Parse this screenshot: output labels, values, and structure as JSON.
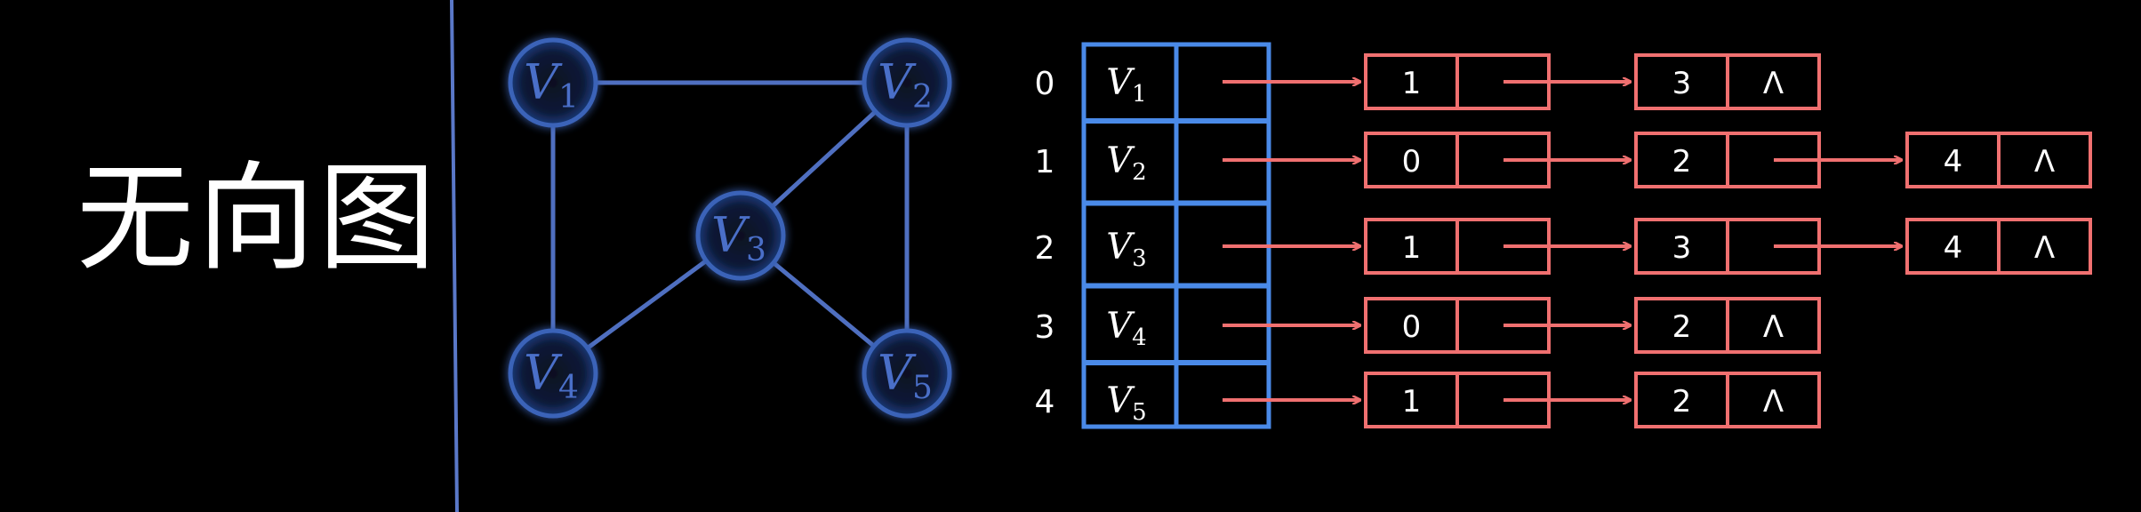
{
  "title": "无向图",
  "colors": {
    "background": "#000000",
    "graph_node": "#3b63b8",
    "graph_edge": "#4f6fc0",
    "array_box": "#4a8ae8",
    "list_box": "#f07070",
    "divider": "#5a78c8"
  },
  "graph": {
    "vertices": [
      {
        "id": "v1",
        "letter": "V",
        "sub": "1"
      },
      {
        "id": "v2",
        "letter": "V",
        "sub": "2"
      },
      {
        "id": "v3",
        "letter": "V",
        "sub": "3"
      },
      {
        "id": "v4",
        "letter": "V",
        "sub": "4"
      },
      {
        "id": "v5",
        "letter": "V",
        "sub": "5"
      }
    ],
    "edges": [
      [
        "v1",
        "v2"
      ],
      [
        "v1",
        "v4"
      ],
      [
        "v2",
        "v3"
      ],
      [
        "v2",
        "v5"
      ],
      [
        "v3",
        "v4"
      ],
      [
        "v3",
        "v5"
      ]
    ]
  },
  "adjacency": {
    "rows": [
      {
        "index": "0",
        "letter": "V",
        "sub": "1",
        "nodes": [
          {
            "value": "1",
            "next": ""
          },
          {
            "value": "3",
            "next": "Λ"
          }
        ]
      },
      {
        "index": "1",
        "letter": "V",
        "sub": "2",
        "nodes": [
          {
            "value": "0",
            "next": ""
          },
          {
            "value": "2",
            "next": ""
          },
          {
            "value": "4",
            "next": "Λ"
          }
        ]
      },
      {
        "index": "2",
        "letter": "V",
        "sub": "3",
        "nodes": [
          {
            "value": "1",
            "next": ""
          },
          {
            "value": "3",
            "next": ""
          },
          {
            "value": "4",
            "next": "Λ"
          }
        ]
      },
      {
        "index": "3",
        "letter": "V",
        "sub": "4",
        "nodes": [
          {
            "value": "0",
            "next": ""
          },
          {
            "value": "2",
            "next": "Λ"
          }
        ]
      },
      {
        "index": "4",
        "letter": "V",
        "sub": "5",
        "nodes": [
          {
            "value": "1",
            "next": ""
          },
          {
            "value": "2",
            "next": "Λ"
          }
        ]
      }
    ]
  }
}
